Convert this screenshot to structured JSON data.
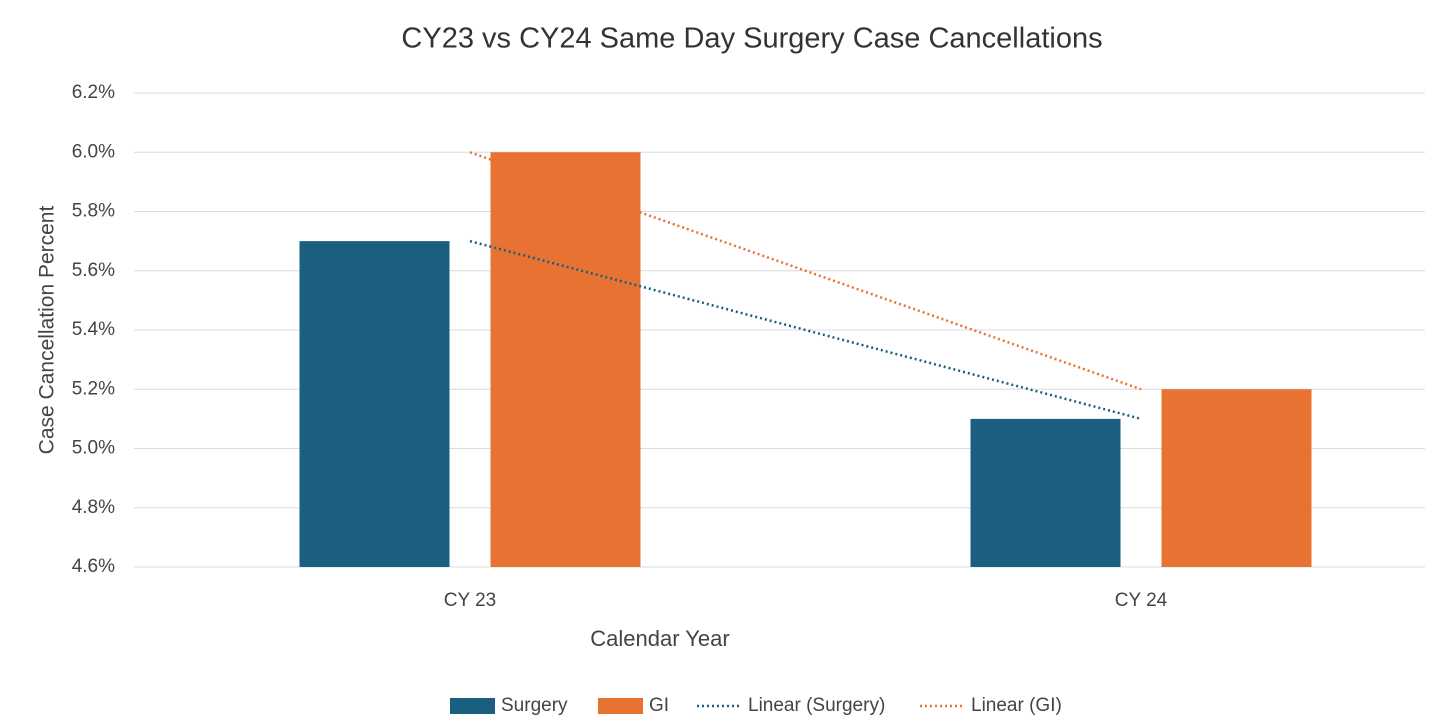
{
  "chart_data": {
    "type": "bar",
    "title": "CY23 vs CY24  Same Day Surgery Case Cancellations",
    "x_label": "Calendar Year",
    "y_label": "Case Cancellation Percent",
    "categories": [
      "CY 23",
      "CY 24"
    ],
    "series": [
      {
        "name": "Surgery",
        "color": "#1a5f80",
        "type": "bar",
        "values": [
          5.7,
          5.1
        ]
      },
      {
        "name": "GI",
        "color": "#e87232",
        "type": "bar",
        "values": [
          6.0,
          5.2
        ]
      },
      {
        "name": "Linear (Surgery)",
        "color": "#1a5f80",
        "type": "line",
        "dash": "dotted",
        "values": [
          5.7,
          5.1
        ]
      },
      {
        "name": "Linear (GI)",
        "color": "#e87232",
        "type": "line",
        "dash": "dotted",
        "values": [
          6.0,
          5.2
        ]
      }
    ],
    "ylim": [
      4.6,
      6.2
    ],
    "yticks": [
      {
        "value": 4.6,
        "label": "4.6%"
      },
      {
        "value": 4.8,
        "label": "4.8%"
      },
      {
        "value": 5.0,
        "label": "5.0%"
      },
      {
        "value": 5.2,
        "label": "5.2%"
      },
      {
        "value": 5.4,
        "label": "5.4%"
      },
      {
        "value": 5.6,
        "label": "5.6%"
      },
      {
        "value": 5.8,
        "label": "5.8%"
      },
      {
        "value": 6.0,
        "label": "6.0%"
      },
      {
        "value": 6.2,
        "label": "6.2%"
      }
    ],
    "grid": true,
    "legend": "bottom"
  }
}
